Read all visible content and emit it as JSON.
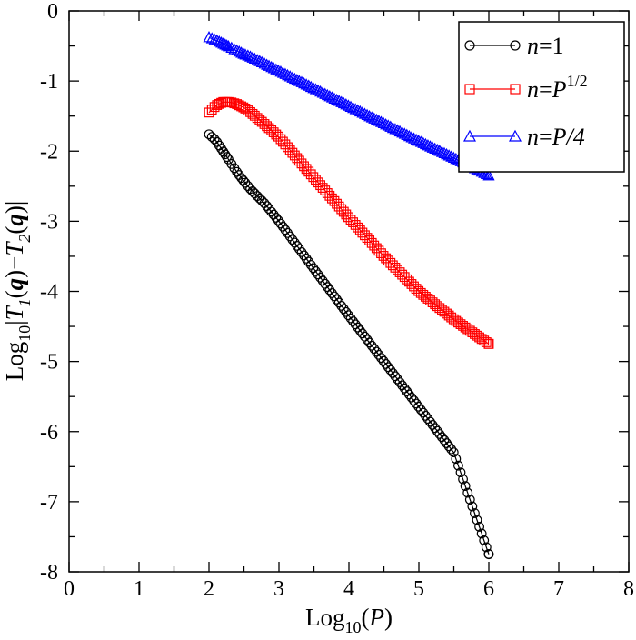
{
  "chart_data": {
    "type": "line",
    "xlabel": "Log10(P)",
    "ylabel": "Log10|T1(q)−T2(q)|",
    "xlim": [
      0,
      8
    ],
    "ylim": [
      -8,
      0
    ],
    "x_ticks": [
      0,
      1,
      2,
      3,
      4,
      5,
      6,
      7,
      8
    ],
    "y_ticks": [
      0,
      -1,
      -2,
      -3,
      -4,
      -5,
      -6,
      -7,
      -8
    ],
    "x_tick_labels": [
      "0",
      "1",
      "2",
      "3",
      "4",
      "5",
      "6",
      "7",
      "8"
    ],
    "y_tick_labels": [
      "0",
      "-1",
      "-2",
      "-3",
      "-4",
      "-5",
      "-6",
      "-7",
      "-8"
    ],
    "grid": false,
    "legend_position": "top-right",
    "series": [
      {
        "name": "n=1",
        "color": "#000000",
        "marker": "circle",
        "x": [
          2.0,
          2.1,
          2.2,
          2.3,
          2.4,
          2.5,
          2.6,
          2.8,
          3.0,
          3.5,
          4.0,
          4.5,
          5.0,
          5.5,
          6.0
        ],
        "values": [
          -1.76,
          -1.85,
          -2.0,
          -2.15,
          -2.3,
          -2.43,
          -2.55,
          -2.75,
          -3.0,
          -3.68,
          -4.35,
          -5.0,
          -5.65,
          -6.3,
          -7.75
        ]
      },
      {
        "name": "n=P^{1/2}",
        "color": "#ff0000",
        "marker": "square",
        "x": [
          2.0,
          2.1,
          2.2,
          2.3,
          2.4,
          2.5,
          2.6,
          2.8,
          3.0,
          3.5,
          4.0,
          4.5,
          5.0,
          5.5,
          6.0
        ],
        "values": [
          -1.45,
          -1.35,
          -1.3,
          -1.3,
          -1.33,
          -1.38,
          -1.45,
          -1.62,
          -1.8,
          -2.38,
          -2.95,
          -3.5,
          -4.0,
          -4.4,
          -4.75
        ]
      },
      {
        "name": "n=P/4",
        "color": "#0000ff",
        "marker": "triangle",
        "x": [
          2.0,
          2.1,
          2.2,
          2.3,
          2.4,
          2.5,
          2.6,
          2.8,
          3.0,
          3.5,
          4.0,
          4.5,
          5.0,
          5.5,
          6.0
        ],
        "values": [
          -0.38,
          -0.42,
          -0.47,
          -0.52,
          -0.57,
          -0.62,
          -0.66,
          -0.76,
          -0.86,
          -1.11,
          -1.36,
          -1.61,
          -1.86,
          -2.1,
          -2.35
        ]
      }
    ]
  },
  "legend": {
    "items": [
      {
        "prefix": "n",
        "eq": "=",
        "base": "1",
        "sup": ""
      },
      {
        "prefix": "n",
        "eq": "=",
        "base": "P",
        "sup": "1/2"
      },
      {
        "prefix": "n",
        "eq": "=",
        "base": "P/4",
        "sup": ""
      }
    ]
  }
}
